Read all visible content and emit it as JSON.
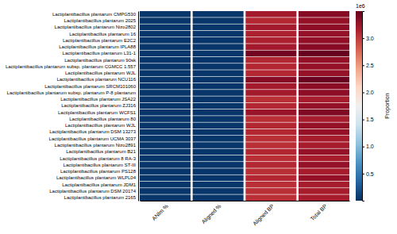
{
  "chart_data": {
    "type": "heatmap",
    "categories": [
      "Lactiplantibacillus plantarum CMPG530",
      "Lactiplantibacillus plantarum 2025",
      "Lactiplantibacillus plantarum Nizo2802",
      "Lactiplantibacillus plantarum 16",
      "Lactiplantibacillus plantarum E2C2",
      "Lactiplantibacillus plantarum IPLA88",
      "Lactiplantibacillus plantarum L31-1",
      "Lactiplantibacillus plantarum 90sk",
      "Lactiplantibacillus plantarum subsp. plantarum CGMCC 1.557",
      "Lactiplantibacillus plantarum WJL",
      "Lactiplantibacillus plantarum NCU116",
      "Lactiplantibacillus plantarum SRCM101060",
      "Lactiplantibacillus plantarum subsp. plantarum P-8 plantarum",
      "Lactiplantibacillus plantarum JSA22",
      "Lactiplantibacillus plantarum ZJ316",
      "Lactiplantibacillus plantarum WCFS1",
      "Lactiplantibacillus plantarum 80",
      "Lactiplantibacillus plantarum WJL",
      "Lactiplantibacillus plantarum DSM 13273",
      "Lactiplantibacillus plantarum UCMA 3037",
      "Lactiplantibacillus plantarum Nizo2891",
      "Lactiplantibacillus plantarum B21",
      "Lactiplantibacillus plantarum 8 RA-3",
      "Lactiplantibacillus plantarum ST-III",
      "Lactiplantibacillus plantarum PS128",
      "Lactiplantibacillus plantarum WLPL04",
      "Lactiplantibacillus plantarum JDM1",
      "Lactiplantibacillus plantarum DSM 20174",
      "Lactiplantibacillus plantarum 2165"
    ],
    "series": [
      {
        "name": "ANIm %",
        "values": [
          0.04,
          0.04,
          0.04,
          0.04,
          0.04,
          0.04,
          0.04,
          0.04,
          0.04,
          0.04,
          0.04,
          0.04,
          0.04,
          0.04,
          0.04,
          0.04,
          0.04,
          0.04,
          0.04,
          0.04,
          0.04,
          0.04,
          0.04,
          0.04,
          0.04,
          0.04,
          0.04,
          0.04,
          0.04
        ]
      },
      {
        "name": "Aligned %",
        "values": [
          0.04,
          0.04,
          0.04,
          0.04,
          0.04,
          0.04,
          0.04,
          0.04,
          0.04,
          0.04,
          0.04,
          0.04,
          0.04,
          0.04,
          0.04,
          0.04,
          0.04,
          0.04,
          0.04,
          0.04,
          0.04,
          0.04,
          0.04,
          0.04,
          0.04,
          0.04,
          0.04,
          0.04,
          0.04
        ]
      },
      {
        "name": "Aligned BP",
        "values": [
          3.2,
          3.1,
          3.2,
          3.15,
          3.15,
          3.2,
          3.45,
          3.1,
          3.1,
          3.1,
          3.35,
          3.2,
          3.2,
          3.05,
          3.1,
          3.25,
          3.05,
          3.1,
          3.1,
          3.05,
          3.05,
          3.1,
          3.05,
          3.1,
          3.05,
          3.1,
          3.05,
          3.05,
          3.05
        ]
      },
      {
        "name": "Total BP",
        "values": [
          3.35,
          3.28,
          3.32,
          3.28,
          3.3,
          3.35,
          3.5,
          3.28,
          3.28,
          3.28,
          3.48,
          3.32,
          3.32,
          3.18,
          3.28,
          3.38,
          3.18,
          3.28,
          3.28,
          3.18,
          3.18,
          3.28,
          3.18,
          3.28,
          3.18,
          3.28,
          3.18,
          3.18,
          3.18
        ]
      }
    ],
    "color_range": [
      0.0,
      3.5
    ],
    "color_ticks": [
      0.5,
      {
        "value": 1.0,
        "label": "1.0"
      },
      1.5,
      {
        "value": 2.0,
        "label": "2.0"
      },
      2.5,
      {
        "value": 3.0,
        "label": "3.0"
      }
    ],
    "color_label": "Proportion",
    "color_title": "1e6"
  }
}
